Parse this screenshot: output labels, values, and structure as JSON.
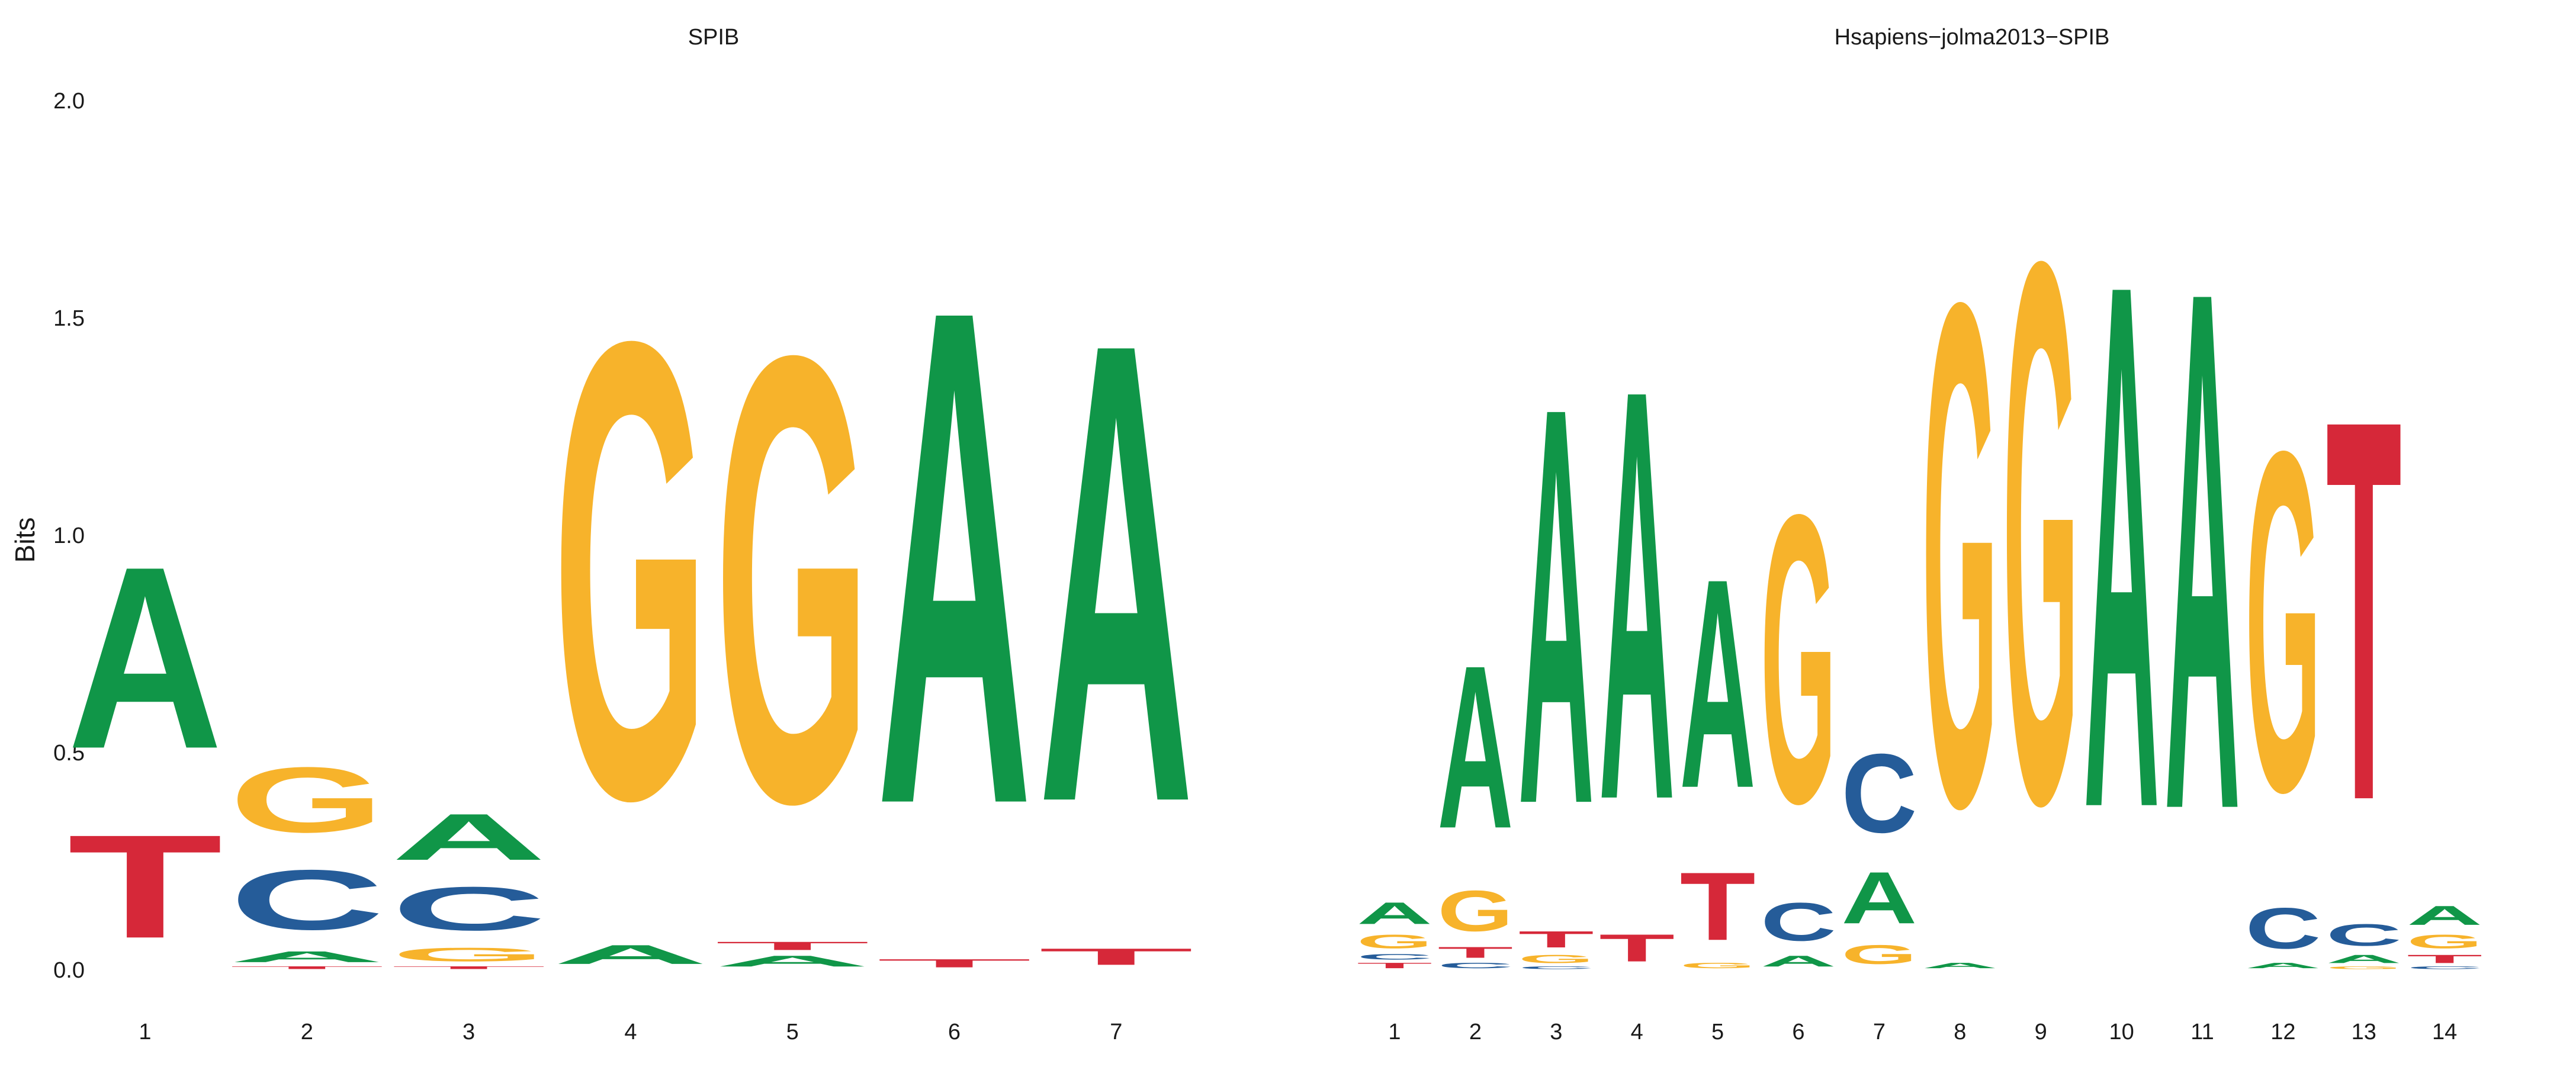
{
  "chart_data": [
    {
      "type": "sequence-logo",
      "title": "SPIB",
      "ylabel": "Bits",
      "ylim": [
        0,
        2
      ],
      "yticks": [
        "0.0",
        "0.5",
        "1.0",
        "1.5",
        "2.0"
      ],
      "colors": {
        "A": "#109648",
        "C": "#255c99",
        "G": "#f7b32b",
        "T": "#d62839"
      },
      "positions": [
        {
          "label": "1",
          "letters": [
            {
              "base": "T",
              "bits": 0.38
            },
            {
              "base": "A",
              "bits": 0.67
            }
          ]
        },
        {
          "label": "2",
          "letters": [
            {
              "base": "T",
              "bits": 0.01
            },
            {
              "base": "A",
              "bits": 0.04
            },
            {
              "base": "C",
              "bits": 0.22
            },
            {
              "base": "G",
              "bits": 0.24
            }
          ]
        },
        {
          "label": "3",
          "letters": [
            {
              "base": "T",
              "bits": 0.01
            },
            {
              "base": "G",
              "bits": 0.05
            },
            {
              "base": "C",
              "bits": 0.16
            },
            {
              "base": "A",
              "bits": 0.17
            }
          ]
        },
        {
          "label": "4",
          "letters": [
            {
              "base": "A",
              "bits": 0.07
            },
            {
              "base": "G",
              "bits": 1.68
            }
          ]
        },
        {
          "label": "5",
          "letters": [
            {
              "base": "A",
              "bits": 0.04
            },
            {
              "base": "T",
              "bits": 0.03
            },
            {
              "base": "G",
              "bits": 1.64
            }
          ]
        },
        {
          "label": "6",
          "letters": [
            {
              "base": "T",
              "bits": 0.03
            },
            {
              "base": "A",
              "bits": 1.82
            }
          ]
        },
        {
          "label": "7",
          "letters": [
            {
              "base": "T",
              "bits": 0.06
            },
            {
              "base": "A",
              "bits": 1.69
            }
          ]
        }
      ]
    },
    {
      "type": "sequence-logo",
      "title": "Hsapiens−jolma2013−SPIB",
      "ylim": [
        0,
        2
      ],
      "colors": {
        "A": "#109648",
        "C": "#255c99",
        "G": "#f7b32b",
        "T": "#d62839"
      },
      "positions": [
        {
          "label": "1",
          "letters": [
            {
              "base": "T",
              "bits": 0.02
            },
            {
              "base": "C",
              "bits": 0.02
            },
            {
              "base": "G",
              "bits": 0.05
            },
            {
              "base": "A",
              "bits": 0.08
            }
          ]
        },
        {
          "label": "2",
          "letters": [
            {
              "base": "C",
              "bits": 0.02
            },
            {
              "base": "T",
              "bits": 0.04
            },
            {
              "base": "G",
              "bits": 0.15
            },
            {
              "base": "A",
              "bits": 0.6
            }
          ]
        },
        {
          "label": "3",
          "letters": [
            {
              "base": "C",
              "bits": 0.01
            },
            {
              "base": "G",
              "bits": 0.03
            },
            {
              "base": "T",
              "bits": 0.06
            },
            {
              "base": "A",
              "bits": 1.46
            }
          ]
        },
        {
          "label": "4",
          "letters": [
            {
              "base": "T",
              "bits": 0.1
            },
            {
              "base": "A",
              "bits": 1.51
            }
          ]
        },
        {
          "label": "5",
          "letters": [
            {
              "base": "G",
              "bits": 0.02
            },
            {
              "base": "T",
              "bits": 0.25
            },
            {
              "base": "A",
              "bits": 0.77
            }
          ]
        },
        {
          "label": "6",
          "letters": [
            {
              "base": "A",
              "bits": 0.04
            },
            {
              "base": "C",
              "bits": 0.14
            },
            {
              "base": "G",
              "bits": 1.06
            }
          ]
        },
        {
          "label": "7",
          "letters": [
            {
              "base": "G",
              "bits": 0.07
            },
            {
              "base": "A",
              "bits": 0.19
            },
            {
              "base": "C",
              "bits": 0.29
            }
          ]
        },
        {
          "label": "8",
          "letters": [
            {
              "base": "A",
              "bits": 0.02
            },
            {
              "base": "G",
              "bits": 1.85
            }
          ]
        },
        {
          "label": "9",
          "letters": [
            {
              "base": "G",
              "bits": 1.99
            }
          ]
        },
        {
          "label": "10",
          "letters": [
            {
              "base": "A",
              "bits": 1.93
            }
          ]
        },
        {
          "label": "11",
          "letters": [
            {
              "base": "A",
              "bits": 1.91
            }
          ]
        },
        {
          "label": "12",
          "letters": [
            {
              "base": "A",
              "bits": 0.02
            },
            {
              "base": "C",
              "bits": 0.15
            },
            {
              "base": "G",
              "bits": 1.25
            }
          ]
        },
        {
          "label": "13",
          "letters": [
            {
              "base": "G",
              "bits": 0.01
            },
            {
              "base": "A",
              "bits": 0.03
            },
            {
              "base": "C",
              "bits": 0.08
            },
            {
              "base": "T",
              "bits": 1.4
            }
          ]
        },
        {
          "label": "14",
          "letters": [
            {
              "base": "C",
              "bits": 0.01
            },
            {
              "base": "T",
              "bits": 0.03
            },
            {
              "base": "G",
              "bits": 0.05
            },
            {
              "base": "A",
              "bits": 0.07
            }
          ]
        }
      ]
    }
  ]
}
